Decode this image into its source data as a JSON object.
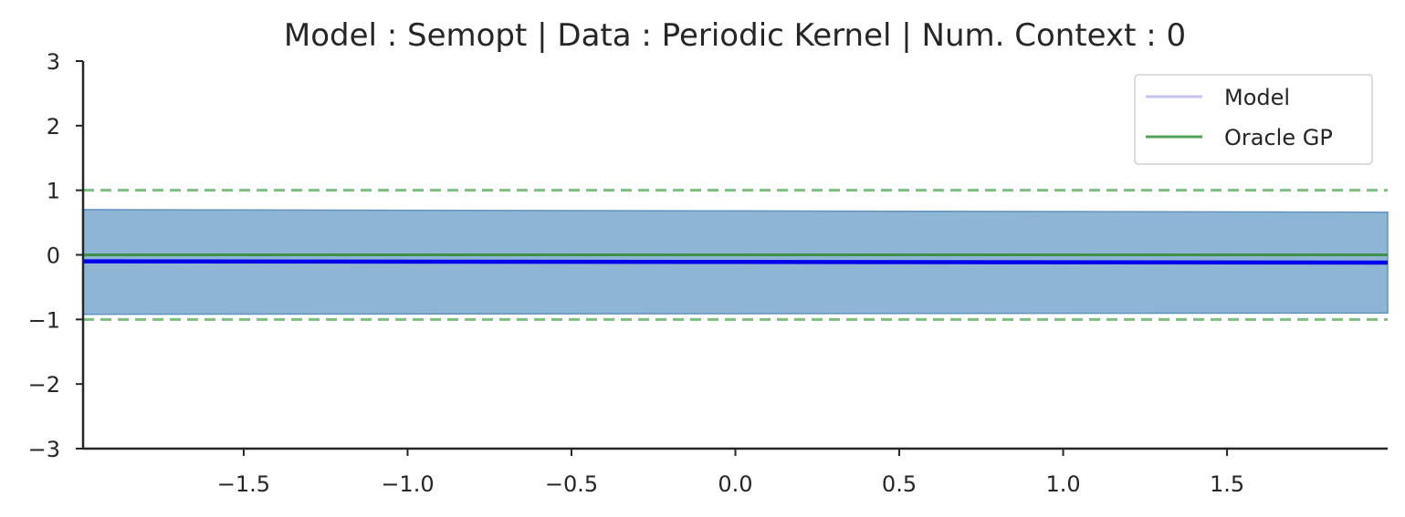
{
  "chart_data": {
    "type": "line",
    "title": "Model : Semopt | Data : Periodic Kernel | Num. Context : 0",
    "xlabel": "",
    "ylabel": "",
    "xlim": [
      -1.99,
      1.99
    ],
    "ylim": [
      -3,
      3
    ],
    "x_ticks": [
      -1.5,
      -1.0,
      -0.5,
      0.0,
      0.5,
      1.0,
      1.5
    ],
    "x_tick_labels": [
      "−1.5",
      "−1.0",
      "−0.5",
      "0.0",
      "0.5",
      "1.0",
      "1.5"
    ],
    "y_ticks": [
      -3,
      -2,
      -1,
      0,
      1,
      2,
      3
    ],
    "y_tick_labels": [
      "−3",
      "−2",
      "−1",
      "0",
      "1",
      "2",
      "3"
    ],
    "grid": false,
    "legend": {
      "placement": "top-right",
      "entries": [
        {
          "label": "Model",
          "color": "#c3c3f5"
        },
        {
          "label": "Oracle GP",
          "color": "#55a05a"
        }
      ]
    },
    "series": [
      {
        "name": "Model",
        "color": "#0000ee",
        "x": [
          -1.99,
          0,
          1.99
        ],
        "y": [
          -0.1,
          -0.11,
          -0.12
        ],
        "band": {
          "color": "#8fb5d4",
          "edge_color": "#5f93c0",
          "lower": [
            -0.92,
            -0.91,
            -0.9
          ],
          "upper": [
            0.7,
            0.68,
            0.66
          ]
        }
      },
      {
        "name": "Oracle GP",
        "color": "#3e8f48",
        "x": [
          -1.99,
          1.99
        ],
        "y": [
          0,
          0
        ],
        "band": {
          "color": "#7cbf7f",
          "lower": [
            -1,
            -1
          ],
          "upper": [
            1,
            1
          ],
          "style": "dashed"
        }
      }
    ]
  }
}
